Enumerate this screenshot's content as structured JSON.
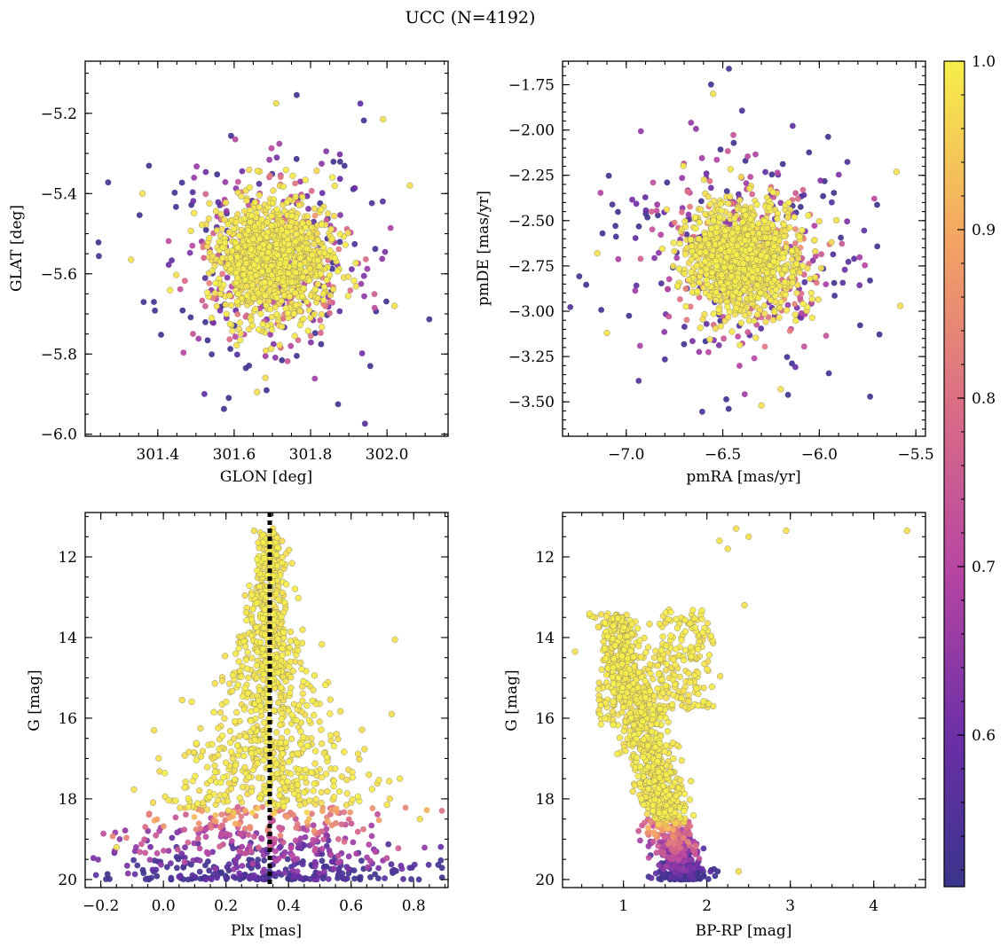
{
  "title": "UCC (N=4192)",
  "colorbar": {
    "ticks": [
      0.6,
      0.7,
      0.8,
      0.9,
      1.0
    ],
    "tick_labels": [
      "0.6",
      "0.7",
      "0.8",
      "0.9",
      "1.0"
    ],
    "range": [
      0.51,
      1.0
    ],
    "colormap": "plasma"
  },
  "chart_data": [
    {
      "type": "scatter",
      "id": "pos",
      "xlabel": "GLON [deg]",
      "ylabel": "GLAT [deg]",
      "xlim": [
        301.21,
        302.16
      ],
      "ylim": [
        -6.005,
        -5.07
      ],
      "xticks": [
        301.4,
        301.6,
        301.8,
        302.0
      ],
      "xtick_labels": [
        "301.4",
        "301.6",
        "301.8",
        "302.0"
      ],
      "yticks": [
        -6.0,
        -5.8,
        -5.6,
        -5.4,
        -5.2
      ],
      "ytick_labels": [
        "−6.0",
        "−5.8",
        "−5.6",
        "−5.4",
        "−5.2"
      ],
      "x_minor": 0.05,
      "y_minor": 0.05,
      "cluster": {
        "x": 301.7,
        "y": -5.56,
        "sx": 0.075,
        "sy": 0.075
      },
      "field": {
        "x": 301.7,
        "y": -5.56,
        "sx": 0.14,
        "sy": 0.14
      },
      "n_points": 1400,
      "series": [
        {
          "name": "sample",
          "points": [
            [
              301.71,
              -5.175
            ],
            [
              301.66,
              -5.895
            ],
            [
              301.33,
              -5.565
            ],
            [
              302.06,
              -5.38
            ],
            [
              301.36,
              -5.4
            ],
            [
              301.99,
              -5.215
            ],
            [
              302.02,
              -5.68
            ]
          ]
        }
      ]
    },
    {
      "type": "scatter",
      "id": "pm",
      "xlabel": "pmRA [mas/yr]",
      "ylabel": "pmDE [mas/yr]",
      "xlim": [
        -7.33,
        -5.45
      ],
      "ylim": [
        -3.69,
        -1.62
      ],
      "xticks": [
        -7.0,
        -6.5,
        -6.0,
        -5.5
      ],
      "xtick_labels": [
        "−7.0",
        "−6.5",
        "−6.0",
        "−5.5"
      ],
      "yticks": [
        -3.5,
        -3.25,
        -3.0,
        -2.75,
        -2.5,
        -2.25,
        -2.0,
        -1.75
      ],
      "ytick_labels": [
        "−3.50",
        "−3.25",
        "−3.00",
        "−2.75",
        "−2.50",
        "−2.25",
        "−2.00",
        "−1.75"
      ],
      "x_minor": 0.1,
      "y_minor": 0.05,
      "cluster": {
        "x": -6.4,
        "y": -2.7,
        "sx": 0.15,
        "sy": 0.16
      },
      "field": {
        "x": -6.4,
        "y": -2.7,
        "sx": 0.32,
        "sy": 0.33
      },
      "n_points": 1400,
      "series": [
        {
          "name": "sample",
          "points": [
            [
              -7.15,
              -2.68
            ],
            [
              -7.1,
              -3.12
            ],
            [
              -5.6,
              -2.23
            ],
            [
              -5.58,
              -2.97
            ],
            [
              -6.55,
              -1.8
            ],
            [
              -6.3,
              -3.52
            ],
            [
              -6.2,
              -3.43
            ]
          ]
        }
      ]
    },
    {
      "type": "scatter",
      "id": "plx",
      "xlabel": "Plx [mas]",
      "ylabel": "G [mag]",
      "xlim": [
        -0.25,
        0.91
      ],
      "ylim": [
        20.2,
        10.9
      ],
      "xticks": [
        -0.2,
        0.0,
        0.2,
        0.4,
        0.6,
        0.8
      ],
      "xtick_labels": [
        "−0.2",
        "0.0",
        "0.2",
        "0.4",
        "0.6",
        "0.8"
      ],
      "yticks": [
        12,
        14,
        16,
        18,
        20
      ],
      "ytick_labels": [
        "12",
        "14",
        "16",
        "18",
        "20"
      ],
      "x_minor": 0.05,
      "y_minor": 0.5,
      "vline": {
        "x": 0.34,
        "style": "dotted",
        "color": "#000000"
      },
      "n_points": 1500,
      "series": [
        {
          "name": "sample",
          "points": [
            [
              0.29,
              11.35
            ],
            [
              0.31,
              11.4
            ],
            [
              0.35,
              11.3
            ],
            [
              0.74,
              14.05
            ],
            [
              0.06,
              15.55
            ],
            [
              -0.03,
              16.3
            ],
            [
              0.73,
              15.9
            ],
            [
              0.82,
              18.5
            ],
            [
              -0.15,
              19.2
            ]
          ]
        }
      ]
    },
    {
      "type": "scatter",
      "id": "cmd",
      "xlabel": "BP-RP [mag]",
      "ylabel": "G [mag]",
      "xlim": [
        0.27,
        4.62
      ],
      "ylim": [
        20.2,
        10.9
      ],
      "xticks": [
        1,
        2,
        3,
        4
      ],
      "xtick_labels": [
        "1",
        "2",
        "3",
        "4"
      ],
      "yticks": [
        12,
        14,
        16,
        18,
        20
      ],
      "ytick_labels": [
        "12",
        "14",
        "16",
        "18",
        "20"
      ],
      "x_minor": 0.25,
      "y_minor": 0.5,
      "n_points": 1500,
      "series": [
        {
          "name": "sample",
          "points": [
            [
              2.35,
              11.3
            ],
            [
              2.5,
              11.5
            ],
            [
              2.95,
              11.35
            ],
            [
              4.4,
              11.35
            ],
            [
              2.15,
              11.6
            ],
            [
              2.25,
              11.8
            ],
            [
              2.45,
              13.2
            ],
            [
              0.42,
              14.35
            ],
            [
              1.02,
              14.05
            ],
            [
              2.38,
              19.8
            ]
          ]
        }
      ]
    }
  ]
}
